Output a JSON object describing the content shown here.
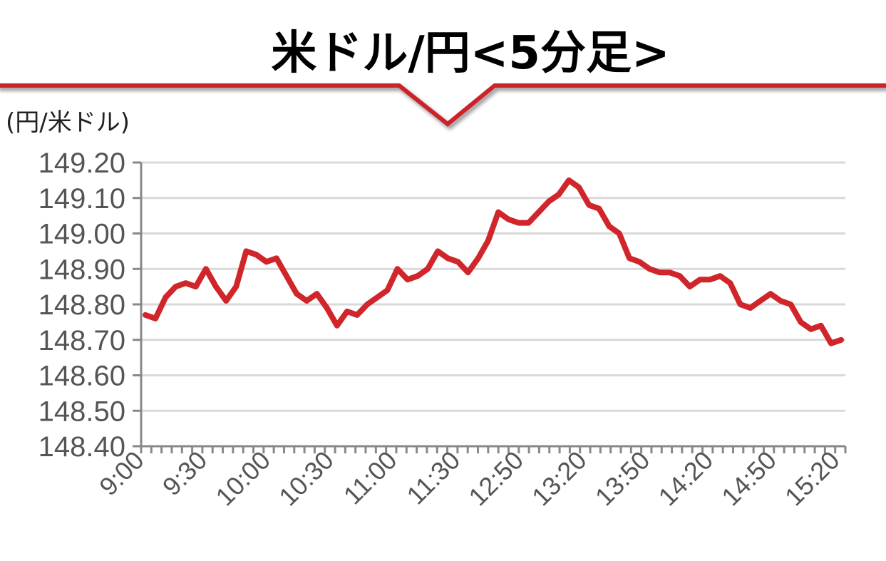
{
  "chart_data": {
    "type": "line",
    "title": "米ドル/円<5分足>",
    "ylabel": "(円/米ドル)",
    "xlabel": "",
    "ylim": [
      148.4,
      149.2
    ],
    "y_ticks": [
      "148.40",
      "148.50",
      "148.60",
      "148.70",
      "148.80",
      "148.90",
      "149.00",
      "149.10",
      "149.20"
    ],
    "x_tick_labels": [
      "9:00",
      "9:30",
      "10:00",
      "10:30",
      "11:00",
      "11:30",
      "12:50",
      "13:20",
      "13:50",
      "14:20",
      "14:50",
      "15:20"
    ],
    "grid": true,
    "line_color": "#d0262b",
    "series": [
      {
        "values": [
          148.77,
          148.76,
          148.82,
          148.85,
          148.86,
          148.85,
          148.9,
          148.85,
          148.81,
          148.85,
          148.95,
          148.94,
          148.92,
          148.93,
          148.88,
          148.83,
          148.81,
          148.83,
          148.79,
          148.74,
          148.78,
          148.77,
          148.8,
          148.82,
          148.84,
          148.9,
          148.87,
          148.88,
          148.9,
          148.95,
          148.93,
          148.92,
          148.89,
          148.93,
          148.98,
          149.06,
          149.04,
          149.03,
          149.03,
          149.06,
          149.09,
          149.11,
          149.15,
          149.13,
          149.08,
          149.07,
          149.02,
          149.0,
          148.93,
          148.92,
          148.9,
          148.89,
          148.89,
          148.88,
          148.85,
          148.87,
          148.87,
          148.88,
          148.86,
          148.8,
          148.79,
          148.81,
          148.83,
          148.81,
          148.8,
          148.75,
          148.73,
          148.74,
          148.69,
          148.7
        ]
      }
    ]
  }
}
